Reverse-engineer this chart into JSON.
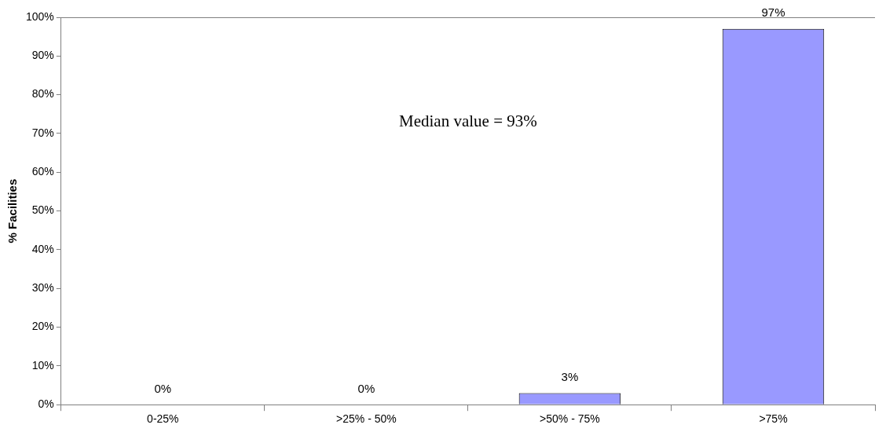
{
  "chart_data": {
    "type": "bar",
    "ylabel": "% Facilities",
    "categories": [
      "0-25%",
      ">25% - 50%",
      ">50% - 75%",
      ">75%"
    ],
    "values": [
      0,
      0,
      3,
      97
    ],
    "value_labels": [
      "0%",
      "0%",
      "3%",
      "97%"
    ],
    "color": "#9999ff",
    "ylim": [
      0,
      100
    ],
    "yticks": [
      {
        "value": 0,
        "label": "0%"
      },
      {
        "value": 10,
        "label": "10%"
      },
      {
        "value": 20,
        "label": "20%"
      },
      {
        "value": 30,
        "label": "30%"
      },
      {
        "value": 40,
        "label": "40%"
      },
      {
        "value": 50,
        "label": "50%"
      },
      {
        "value": 60,
        "label": "60%"
      },
      {
        "value": 70,
        "label": "70%"
      },
      {
        "value": 80,
        "label": "80%"
      },
      {
        "value": 90,
        "label": "90%"
      },
      {
        "value": 100,
        "label": "100%"
      }
    ],
    "grid": false,
    "legend": false,
    "annotations": [
      "Median value = 93%"
    ]
  }
}
